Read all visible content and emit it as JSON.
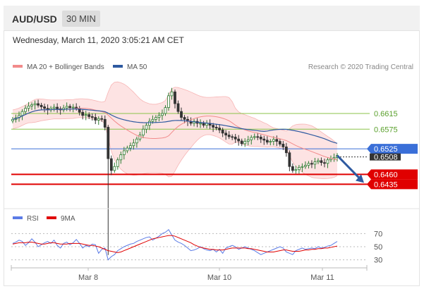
{
  "header": {
    "pair": "AUD/USD",
    "timeframe": "30 MIN"
  },
  "datetime": "Wednesday, March 11, 2020 3:05:21 AM CET",
  "legend": {
    "bollinger": "MA 20 + Bollinger Bands",
    "ma50": "MA 50",
    "credit": "Research © 2020 Trading Central"
  },
  "rsi_legend": {
    "rsi": "RSI",
    "ma9": "9MA"
  },
  "colors": {
    "bollinger": "#f28b8b",
    "band_fill": "#fde0e0",
    "ma50": "#2e5aa0",
    "resistance": "#8bc34a",
    "support": "#e00000",
    "pivot": "#3a6fd8",
    "price_tag": "#333333",
    "up_candle": "#2e7d32",
    "down_candle": "#333333",
    "rsi": "#5b7be6",
    "rsi_ma": "#e00000",
    "arrow": "#2e5aa0"
  },
  "chart_data": [
    {
      "type": "candlestick",
      "title": "AUD/USD 30 MIN",
      "x_tick_labels": [
        "Mar 8",
        "Mar 10",
        "Mar 11"
      ],
      "ylim": [
        0.638,
        0.671
      ],
      "levels": [
        {
          "name": "resistance",
          "value": 0.6615,
          "label": "0.6615"
        },
        {
          "name": "resistance",
          "value": 0.6575,
          "label": "0.6575"
        },
        {
          "name": "pivot",
          "value": 0.6525,
          "label": "0.6525"
        },
        {
          "name": "support",
          "value": 0.646,
          "label": "0.6460"
        },
        {
          "name": "support",
          "value": 0.6435,
          "label": "0.6435"
        }
      ],
      "last_price": {
        "value": 0.6508,
        "label": "0.6508"
      },
      "close_series": [
        0.66,
        0.6604,
        0.661,
        0.662,
        0.6628,
        0.6634,
        0.6637,
        0.664,
        0.6636,
        0.6632,
        0.6628,
        0.6624,
        0.6628,
        0.6631,
        0.6627,
        0.6624,
        0.6629,
        0.6633,
        0.663,
        0.6631,
        0.6628,
        0.6618,
        0.661,
        0.6612,
        0.6607,
        0.6605,
        0.6598,
        0.6602,
        0.66,
        0.658,
        0.65,
        0.647,
        0.648,
        0.6497,
        0.651,
        0.652,
        0.6527,
        0.6533,
        0.654,
        0.655,
        0.656,
        0.6575,
        0.6585,
        0.6595,
        0.66,
        0.6605,
        0.661,
        0.6615,
        0.663,
        0.666,
        0.667,
        0.664,
        0.662,
        0.6605,
        0.66,
        0.6595,
        0.659,
        0.6595,
        0.659,
        0.659,
        0.6585,
        0.659,
        0.6585,
        0.658,
        0.6578,
        0.6573,
        0.6565,
        0.656,
        0.6556,
        0.6555,
        0.655,
        0.6545,
        0.6538,
        0.6544,
        0.6548,
        0.6554,
        0.6556,
        0.6555,
        0.655,
        0.6547,
        0.6542,
        0.6544,
        0.6549,
        0.6544,
        0.6537,
        0.653,
        0.6515,
        0.648,
        0.647,
        0.6472,
        0.6478,
        0.648,
        0.6483,
        0.6488,
        0.6486,
        0.6492,
        0.6495,
        0.649,
        0.6488,
        0.6497,
        0.65,
        0.6503,
        0.6508
      ],
      "spike": {
        "index": 30,
        "low": 0.6255
      },
      "forecast_target": 0.6435
    },
    {
      "type": "line",
      "title": "RSI",
      "ylim": [
        20,
        80
      ],
      "y_tick_labels": [
        "70",
        "50",
        "30"
      ],
      "series": [
        {
          "name": "RSI",
          "values": [
            55,
            57,
            60,
            58,
            52,
            56,
            62,
            57,
            50,
            53,
            56,
            58,
            55,
            60,
            52,
            48,
            55,
            57,
            53,
            56,
            61,
            55,
            48,
            52,
            50,
            54,
            53,
            40,
            46,
            48,
            30,
            35,
            38,
            44,
            47,
            50,
            52,
            54,
            55,
            58,
            60,
            62,
            64,
            65,
            60,
            63,
            66,
            70,
            72,
            76,
            68,
            60,
            57,
            55,
            52,
            48,
            44,
            45,
            47,
            50,
            47,
            45,
            44,
            46,
            42,
            46,
            40,
            48,
            50,
            52,
            50,
            46,
            48,
            50,
            48,
            46,
            44,
            41,
            38,
            40,
            42,
            44,
            46,
            48,
            50,
            48,
            42,
            40,
            38,
            44,
            46,
            48,
            46,
            47,
            48,
            47,
            50,
            48,
            49,
            51,
            52,
            55,
            58
          ]
        },
        {
          "name": "9MA",
          "values": [
            54,
            55,
            56,
            56,
            56,
            57,
            57,
            56,
            55,
            54,
            54,
            55,
            56,
            56,
            55,
            54,
            54,
            54,
            55,
            55,
            55,
            55,
            54,
            53,
            52,
            52,
            51,
            50,
            48,
            46,
            44,
            43,
            42,
            41,
            42,
            44,
            46,
            48,
            50,
            52,
            54,
            56,
            58,
            60,
            62,
            63,
            64,
            65,
            66,
            67,
            67,
            66,
            64,
            62,
            60,
            58,
            56,
            53,
            51,
            49,
            48,
            47,
            46,
            46,
            45,
            45,
            45,
            46,
            47,
            48,
            48,
            48,
            48,
            48,
            47,
            47,
            46,
            45,
            44,
            43,
            42,
            42,
            42,
            43,
            44,
            45,
            45,
            44,
            43,
            43,
            43,
            44,
            45,
            45,
            46,
            46,
            47,
            47,
            48,
            48,
            49,
            50,
            51
          ]
        }
      ]
    }
  ]
}
